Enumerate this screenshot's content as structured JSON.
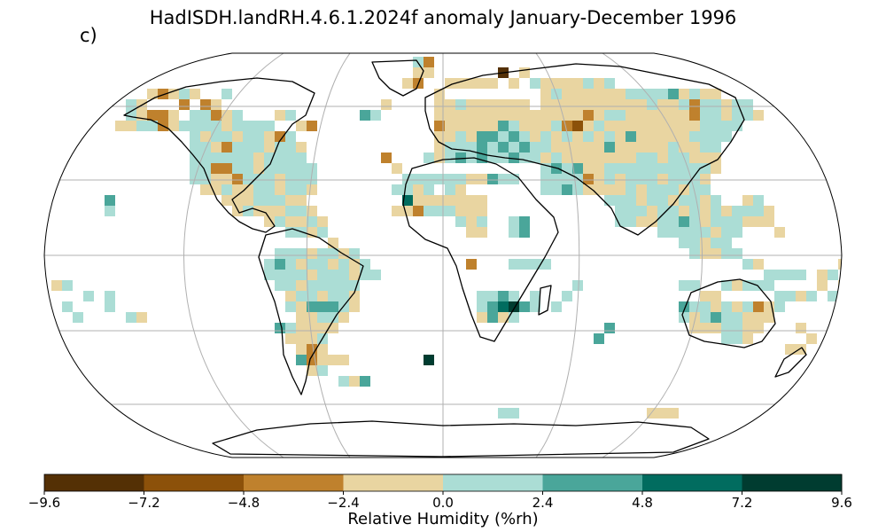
{
  "title": "HadISDH.landRH.4.6.1.2024f anomaly January-December 1996",
  "panel_label": "c)",
  "colorbar": {
    "label": "Relative Humidity (%rh)",
    "ticks": [
      "−9.6",
      "−7.2",
      "−4.8",
      "−2.4",
      "0.0",
      "2.4",
      "4.8",
      "7.2",
      "9.6"
    ],
    "bin_colors": [
      "#543005",
      "#8c510a",
      "#bf812d",
      "#e9d5a1",
      "#abddd5",
      "#4aa69a",
      "#016c5f",
      "#003c30"
    ]
  },
  "map": {
    "projection": "Robinson",
    "graticule": true,
    "coastlines": true,
    "cell_colors": {
      "dbr": "#543005",
      "br": "#8c510a",
      "tan": "#bf812d",
      "lt": "#e9d5a1",
      "lc": "#abddd5",
      "tl": "#4aa69a",
      "dt": "#016c5f",
      "vd": "#003c30"
    }
  }
}
